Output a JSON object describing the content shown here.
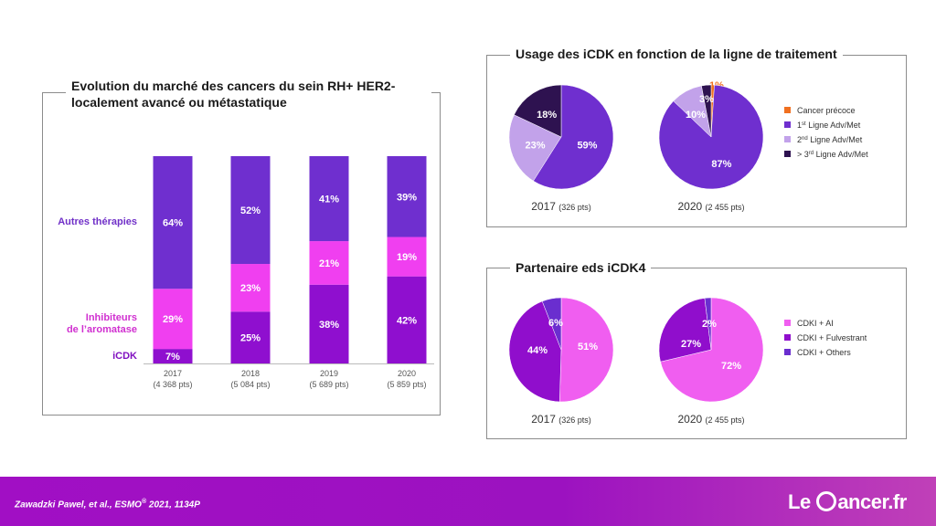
{
  "left_panel": {
    "title_line1": "Evolution du marché des cancers du sein RH+ HER2-",
    "title_line2": "localement avancé ou métastatique"
  },
  "top_right_panel": {
    "title": "Usage des iCDK en fonction de la ligne de traitement"
  },
  "bottom_right_panel": {
    "title": "Partenaire eds iCDK4"
  },
  "colors": {
    "autres": "#6f2fcf",
    "ia": "#f03ff0",
    "icdk": "#8f0fcf",
    "early": "#f07020",
    "first": "#6f2fcf",
    "second": "#c2a2ea",
    "third": "#2e1250",
    "cdki_ai": "#f05ef0",
    "cdki_fulv": "#900ecc",
    "cdki_others": "#6a2ecf",
    "label_autres": "#7030c8",
    "label_ia": "#d030d0",
    "label_icdk": "#8010c0"
  },
  "chart_data": [
    {
      "type": "bar",
      "stacked": true,
      "categories": [
        "2017",
        "2018",
        "2019",
        "2020"
      ],
      "category_notes": [
        "(4 368 pts)",
        "(5 084 pts)",
        "(5 689 pts)",
        "(5 859 pts)"
      ],
      "series": [
        {
          "name": "iCDK",
          "values": [
            7,
            25,
            38,
            42
          ],
          "labels": [
            "7%",
            "25%",
            "38%",
            "42%"
          ]
        },
        {
          "name": "Inhibiteurs de l’aromatase",
          "name_line1": "Inhibiteurs",
          "name_line2": "de l’aromatase",
          "values": [
            29,
            23,
            21,
            19
          ],
          "labels": [
            "29%",
            "23%",
            "21%",
            "19%"
          ]
        },
        {
          "name": "Autres thérapies",
          "values": [
            64,
            52,
            41,
            39
          ],
          "labels": [
            "64%",
            "52%",
            "41%",
            "39%"
          ]
        }
      ]
    },
    {
      "type": "pie",
      "caption_year": "2017",
      "caption_note": "(326 pts)",
      "slices": [
        {
          "name": "1st Ligne Adv/Met",
          "value": 59,
          "label": "59%"
        },
        {
          "name": "2nd Ligne Adv/Met",
          "value": 23,
          "label": "23%"
        },
        {
          "name": "≥ 3rd Ligne Adv/Met",
          "value": 18,
          "label": "18%"
        }
      ]
    },
    {
      "type": "pie",
      "caption_year": "2020",
      "caption_note": "(2 455 pts)",
      "slices": [
        {
          "name": "Cancer précoce",
          "value": 1,
          "label": "1%"
        },
        {
          "name": "1st Ligne Adv/Met",
          "value": 87,
          "label": "87%"
        },
        {
          "name": "2nd Ligne Adv/Met",
          "value": 10,
          "label": "10%"
        },
        {
          "name": "≥ 3rd Ligne Adv/Met",
          "value": 3,
          "label": "3%"
        }
      ],
      "legend": [
        {
          "text": "Cancer précoce"
        },
        {
          "pre": "1",
          "sup": "st",
          "post": " Ligne Adv/Met"
        },
        {
          "pre": "2",
          "sup": "nd",
          "post": " Ligne Adv/Met"
        },
        {
          "pre": "> 3",
          "sup": "rd",
          "post": " Ligne Adv/Met"
        }
      ]
    },
    {
      "type": "pie",
      "caption_year": "2017",
      "caption_note": "(326 pts)",
      "slices": [
        {
          "name": "CDKI + AI",
          "value": 51,
          "label": "51%"
        },
        {
          "name": "CDKI + Fulvestrant",
          "value": 44,
          "label": "44%"
        },
        {
          "name": "CDKI + Others",
          "value": 6,
          "label": "6%"
        }
      ]
    },
    {
      "type": "pie",
      "caption_year": "2020",
      "caption_note": "(2 455 pts)",
      "slices": [
        {
          "name": "CDKI + AI",
          "value": 72,
          "label": "72%"
        },
        {
          "name": "CDKI + Fulvestrant",
          "value": 27,
          "label": "27%"
        },
        {
          "name": "CDKI + Others",
          "value": 2,
          "label": "2%"
        }
      ],
      "legend": [
        {
          "text": "CDKI + AI"
        },
        {
          "text": "CDKI + Fulvestrant"
        },
        {
          "text": "CDKI + Others"
        }
      ]
    }
  ],
  "footer": {
    "citation_text": "Zawadzki Pawel, et al.,  ESMO",
    "citation_sup": "®",
    "citation_tail": " 2021, 1134P",
    "logo_left": "Le",
    "logo_right": "ancer.fr"
  }
}
